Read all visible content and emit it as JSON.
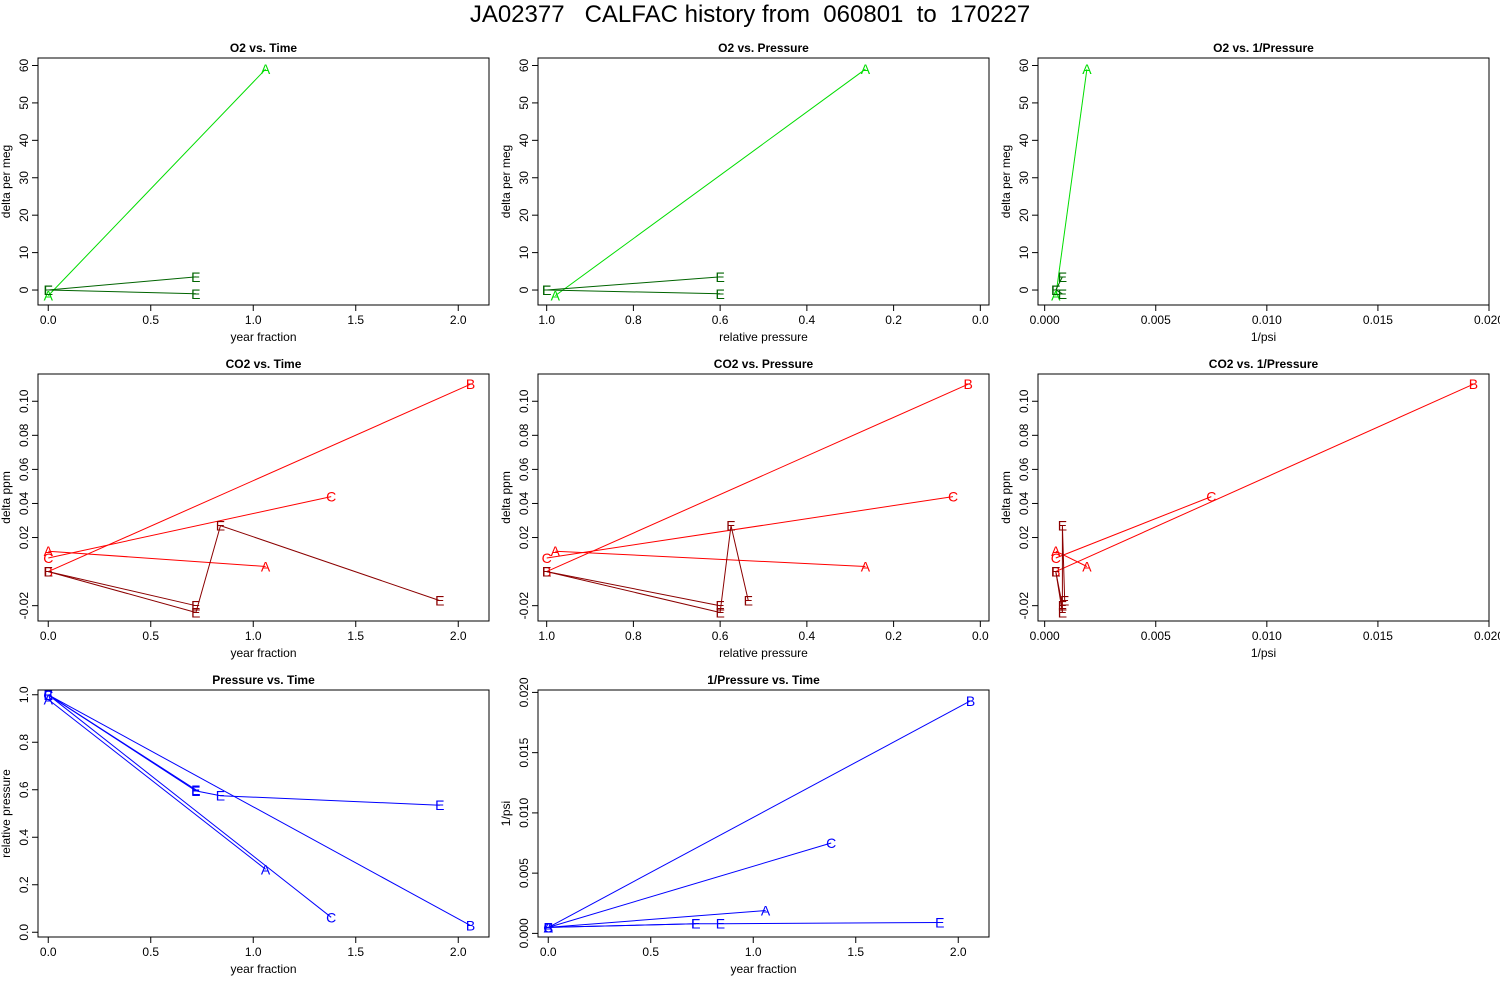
{
  "page": {
    "title": "JA02377   CALFAC history from  060801  to  170227"
  },
  "colors": {
    "o2_light": "#00dd00",
    "o2_dark": "#006400",
    "co2_light": "#ff0000",
    "co2_dark": "#8b0000",
    "pressure": "#0000ff"
  },
  "chart_data": [
    {
      "id": "o2-time",
      "type": "line",
      "title": "O2 vs. Time",
      "xlabel": "year fraction",
      "ylabel": "delta per meg",
      "xlim": [
        -0.05,
        2.15
      ],
      "ylim": [
        -4,
        62
      ],
      "xticks": [
        0,
        0.5,
        1,
        1.5,
        2
      ],
      "xticklabels": [
        "0.0",
        "0.5",
        "1.0",
        "1.5",
        "2.0"
      ],
      "yticks": [
        0,
        10,
        20,
        30,
        40,
        50,
        60
      ],
      "yticklabels": [
        "0",
        "10",
        "20",
        "30",
        "40",
        "50",
        "60"
      ],
      "series": [
        {
          "name": "A",
          "color": "#00dd00",
          "points": [
            {
              "x": 0,
              "y": -1.5,
              "label": "A"
            },
            {
              "x": 1.06,
              "y": 59,
              "label": "A"
            }
          ]
        },
        {
          "name": "E",
          "color": "#006400",
          "points": [
            {
              "x": 0,
              "y": 0,
              "label": "E"
            },
            {
              "x": 0.72,
              "y": -1,
              "label": "E"
            }
          ]
        },
        {
          "name": "E2",
          "color": "#006400",
          "points": [
            {
              "x": 0,
              "y": 0,
              "label": "E"
            },
            {
              "x": 0.72,
              "y": 3.5,
              "label": "E"
            }
          ]
        }
      ]
    },
    {
      "id": "o2-pressure",
      "type": "line",
      "title": "O2 vs. Pressure",
      "xlabel": "relative pressure",
      "ylabel": "delta per meg",
      "xlim": [
        1.02,
        -0.02
      ],
      "ylim": [
        -4,
        62
      ],
      "xticks": [
        1,
        0.8,
        0.6,
        0.4,
        0.2,
        0
      ],
      "xticklabels": [
        "1.0",
        "0.8",
        "0.6",
        "0.4",
        "0.2",
        "0.0"
      ],
      "yticks": [
        0,
        10,
        20,
        30,
        40,
        50,
        60
      ],
      "yticklabels": [
        "0",
        "10",
        "20",
        "30",
        "40",
        "50",
        "60"
      ],
      "series": [
        {
          "name": "A",
          "color": "#00dd00",
          "points": [
            {
              "x": 0.98,
              "y": -1.5,
              "label": "A"
            },
            {
              "x": 0.265,
              "y": 59,
              "label": "A"
            }
          ]
        },
        {
          "name": "E",
          "color": "#006400",
          "points": [
            {
              "x": 1.0,
              "y": 0,
              "label": "E"
            },
            {
              "x": 0.6,
              "y": -1,
              "label": "E"
            }
          ]
        },
        {
          "name": "E2",
          "color": "#006400",
          "points": [
            {
              "x": 1.0,
              "y": 0,
              "label": "E"
            },
            {
              "x": 0.6,
              "y": 3.5,
              "label": "E"
            }
          ]
        }
      ]
    },
    {
      "id": "o2-inv-pressure",
      "type": "line",
      "title": "O2 vs. 1/Pressure",
      "xlabel": "1/psi",
      "ylabel": "delta per meg",
      "xlim": [
        -0.0003,
        0.02
      ],
      "ylim": [
        -4,
        62
      ],
      "xticks": [
        0,
        0.005,
        0.01,
        0.015,
        0.02
      ],
      "xticklabels": [
        "0.000",
        "0.005",
        "0.010",
        "0.015",
        "0.020"
      ],
      "yticks": [
        0,
        10,
        20,
        30,
        40,
        50,
        60
      ],
      "yticklabels": [
        "0",
        "10",
        "20",
        "30",
        "40",
        "50",
        "60"
      ],
      "series": [
        {
          "name": "A",
          "color": "#00dd00",
          "points": [
            {
              "x": 0.0005,
              "y": -1.5,
              "label": "A"
            },
            {
              "x": 0.0019,
              "y": 59,
              "label": "A"
            }
          ]
        },
        {
          "name": "E",
          "color": "#006400",
          "points": [
            {
              "x": 0.0005,
              "y": 0,
              "label": "E"
            },
            {
              "x": 0.0008,
              "y": -1,
              "label": "E"
            }
          ]
        },
        {
          "name": "E2",
          "color": "#006400",
          "points": [
            {
              "x": 0.0005,
              "y": 0,
              "label": "E"
            },
            {
              "x": 0.0008,
              "y": 3.5,
              "label": "E"
            }
          ]
        }
      ]
    },
    {
      "id": "co2-time",
      "type": "line",
      "title": "CO2 vs. Time",
      "xlabel": "year fraction",
      "ylabel": "delta ppm",
      "xlim": [
        -0.05,
        2.15
      ],
      "ylim": [
        -0.029,
        0.116
      ],
      "xticks": [
        0,
        0.5,
        1,
        1.5,
        2
      ],
      "xticklabels": [
        "0.0",
        "0.5",
        "1.0",
        "1.5",
        "2.0"
      ],
      "yticks": [
        -0.02,
        0.02,
        0.04,
        0.06,
        0.08,
        0.1
      ],
      "yticklabels": [
        "-0.02",
        "0.02",
        "0.04",
        "0.06",
        "0.08",
        "0.10"
      ],
      "series": [
        {
          "name": "A",
          "color": "#ff0000",
          "points": [
            {
              "x": 0,
              "y": 0.012,
              "label": "A"
            },
            {
              "x": 1.06,
              "y": 0.003,
              "label": "A"
            }
          ]
        },
        {
          "name": "B",
          "color": "#ff0000",
          "points": [
            {
              "x": 0,
              "y": 0,
              "label": "B"
            },
            {
              "x": 2.06,
              "y": 0.11,
              "label": "B"
            }
          ]
        },
        {
          "name": "C",
          "color": "#ff0000",
          "points": [
            {
              "x": 0,
              "y": 0.008,
              "label": "C"
            },
            {
              "x": 1.38,
              "y": 0.044,
              "label": "C"
            }
          ]
        },
        {
          "name": "E1",
          "color": "#8b0000",
          "points": [
            {
              "x": 0,
              "y": 0,
              "label": "E"
            },
            {
              "x": 0.72,
              "y": -0.02,
              "label": "E"
            }
          ]
        },
        {
          "name": "E2",
          "color": "#8b0000",
          "points": [
            {
              "x": 0,
              "y": 0,
              "label": "E"
            },
            {
              "x": 0.72,
              "y": -0.024,
              "label": "E"
            },
            {
              "x": 0.84,
              "y": 0.027,
              "label": "E"
            },
            {
              "x": 1.91,
              "y": -0.017,
              "label": "E"
            }
          ]
        }
      ]
    },
    {
      "id": "co2-pressure",
      "type": "line",
      "title": "CO2 vs. Pressure",
      "xlabel": "relative pressure",
      "ylabel": "delta ppm",
      "xlim": [
        1.02,
        -0.02
      ],
      "ylim": [
        -0.029,
        0.116
      ],
      "xticks": [
        1,
        0.8,
        0.6,
        0.4,
        0.2,
        0
      ],
      "xticklabels": [
        "1.0",
        "0.8",
        "0.6",
        "0.4",
        "0.2",
        "0.0"
      ],
      "yticks": [
        -0.02,
        0.02,
        0.04,
        0.06,
        0.08,
        0.1
      ],
      "yticklabels": [
        "-0.02",
        "0.02",
        "0.04",
        "0.06",
        "0.08",
        "0.10"
      ],
      "series": [
        {
          "name": "A",
          "color": "#ff0000",
          "points": [
            {
              "x": 0.98,
              "y": 0.012,
              "label": "A"
            },
            {
              "x": 0.265,
              "y": 0.003,
              "label": "A"
            }
          ]
        },
        {
          "name": "B",
          "color": "#ff0000",
          "points": [
            {
              "x": 1.0,
              "y": 0,
              "label": "B"
            },
            {
              "x": 0.028,
              "y": 0.11,
              "label": "B"
            }
          ]
        },
        {
          "name": "C",
          "color": "#ff0000",
          "points": [
            {
              "x": 1.0,
              "y": 0.008,
              "label": "C"
            },
            {
              "x": 0.063,
              "y": 0.044,
              "label": "C"
            }
          ]
        },
        {
          "name": "E1",
          "color": "#8b0000",
          "points": [
            {
              "x": 1.0,
              "y": 0,
              "label": "E"
            },
            {
              "x": 0.6,
              "y": -0.02,
              "label": "E"
            }
          ]
        },
        {
          "name": "E2",
          "color": "#8b0000",
          "points": [
            {
              "x": 1.0,
              "y": 0,
              "label": "E"
            },
            {
              "x": 0.6,
              "y": -0.024,
              "label": "E"
            },
            {
              "x": 0.575,
              "y": 0.027,
              "label": "E"
            },
            {
              "x": 0.535,
              "y": -0.017,
              "label": "E"
            }
          ]
        }
      ]
    },
    {
      "id": "co2-inv-pressure",
      "type": "line",
      "title": "CO2 vs. 1/Pressure",
      "xlabel": "1/psi",
      "ylabel": "delta ppm",
      "xlim": [
        -0.0003,
        0.02
      ],
      "ylim": [
        -0.029,
        0.116
      ],
      "xticks": [
        0,
        0.005,
        0.01,
        0.015,
        0.02
      ],
      "xticklabels": [
        "0.000",
        "0.005",
        "0.010",
        "0.015",
        "0.020"
      ],
      "yticks": [
        -0.02,
        0.02,
        0.04,
        0.06,
        0.08,
        0.1
      ],
      "yticklabels": [
        "-0.02",
        "0.02",
        "0.04",
        "0.06",
        "0.08",
        "0.10"
      ],
      "series": [
        {
          "name": "A",
          "color": "#ff0000",
          "points": [
            {
              "x": 0.0005,
              "y": 0.012,
              "label": "A"
            },
            {
              "x": 0.0019,
              "y": 0.003,
              "label": "A"
            }
          ]
        },
        {
          "name": "B",
          "color": "#ff0000",
          "points": [
            {
              "x": 0.0005,
              "y": 0,
              "label": "B"
            },
            {
              "x": 0.0193,
              "y": 0.11,
              "label": "B"
            }
          ]
        },
        {
          "name": "C",
          "color": "#ff0000",
          "points": [
            {
              "x": 0.0005,
              "y": 0.008,
              "label": "C"
            },
            {
              "x": 0.0075,
              "y": 0.044,
              "label": "C"
            }
          ]
        },
        {
          "name": "E1",
          "color": "#8b0000",
          "points": [
            {
              "x": 0.0005,
              "y": 0,
              "label": "E"
            },
            {
              "x": 0.0008,
              "y": -0.02,
              "label": "E"
            }
          ]
        },
        {
          "name": "E2",
          "color": "#8b0000",
          "points": [
            {
              "x": 0.0005,
              "y": 0,
              "label": "E"
            },
            {
              "x": 0.0008,
              "y": -0.024,
              "label": "E"
            },
            {
              "x": 0.0008,
              "y": 0.027,
              "label": "E"
            },
            {
              "x": 0.0009,
              "y": -0.017,
              "label": "E"
            }
          ]
        }
      ]
    },
    {
      "id": "pressure-time",
      "type": "line",
      "title": "Pressure vs. Time",
      "xlabel": "year fraction",
      "ylabel": "relative pressure",
      "xlim": [
        -0.05,
        2.15
      ],
      "ylim": [
        -0.02,
        1.02
      ],
      "xticks": [
        0,
        0.5,
        1,
        1.5,
        2
      ],
      "xticklabels": [
        "0.0",
        "0.5",
        "1.0",
        "1.5",
        "2.0"
      ],
      "yticks": [
        0,
        0.2,
        0.4,
        0.6,
        0.8,
        1
      ],
      "yticklabels": [
        "0.0",
        "0.2",
        "0.4",
        "0.6",
        "0.8",
        "1.0"
      ],
      "series": [
        {
          "name": "A",
          "color": "#0000ff",
          "points": [
            {
              "x": 0,
              "y": 0.98,
              "label": "A"
            },
            {
              "x": 1.06,
              "y": 0.265,
              "label": "A"
            }
          ]
        },
        {
          "name": "B",
          "color": "#0000ff",
          "points": [
            {
              "x": 0,
              "y": 1.0,
              "label": "B"
            },
            {
              "x": 2.06,
              "y": 0.028,
              "label": "B"
            }
          ]
        },
        {
          "name": "C",
          "color": "#0000ff",
          "points": [
            {
              "x": 0,
              "y": 1.0,
              "label": "C"
            },
            {
              "x": 1.38,
              "y": 0.063,
              "label": "C"
            }
          ]
        },
        {
          "name": "E1",
          "color": "#0000ff",
          "points": [
            {
              "x": 0,
              "y": 1.0,
              "label": "E"
            },
            {
              "x": 0.72,
              "y": 0.6,
              "label": "E"
            }
          ]
        },
        {
          "name": "E2",
          "color": "#0000ff",
          "points": [
            {
              "x": 0,
              "y": 1.0,
              "label": "E"
            },
            {
              "x": 0.72,
              "y": 0.595,
              "label": "E"
            },
            {
              "x": 0.84,
              "y": 0.575,
              "label": "E"
            },
            {
              "x": 1.91,
              "y": 0.535,
              "label": "E"
            }
          ]
        }
      ]
    },
    {
      "id": "inv-pressure-time",
      "type": "line",
      "title": "1/Pressure vs. Time",
      "xlabel": "year fraction",
      "ylabel": "1/psi",
      "xlim": [
        -0.05,
        2.15
      ],
      "ylim": [
        -0.0003,
        0.0202
      ],
      "xticks": [
        0,
        0.5,
        1,
        1.5,
        2
      ],
      "xticklabels": [
        "0.0",
        "0.5",
        "1.0",
        "1.5",
        "2.0"
      ],
      "yticks": [
        0,
        0.005,
        0.01,
        0.015,
        0.02
      ],
      "yticklabels": [
        "0.000",
        "0.005",
        "0.010",
        "0.015",
        "0.020"
      ],
      "series": [
        {
          "name": "A",
          "color": "#0000ff",
          "points": [
            {
              "x": 0,
              "y": 0.0005,
              "label": "A"
            },
            {
              "x": 1.06,
              "y": 0.0019,
              "label": "A"
            }
          ]
        },
        {
          "name": "B",
          "color": "#0000ff",
          "points": [
            {
              "x": 0,
              "y": 0.0005,
              "label": "B"
            },
            {
              "x": 2.06,
              "y": 0.0193,
              "label": "B"
            }
          ]
        },
        {
          "name": "C",
          "color": "#0000ff",
          "points": [
            {
              "x": 0,
              "y": 0.0005,
              "label": "C"
            },
            {
              "x": 1.38,
              "y": 0.0075,
              "label": "C"
            }
          ]
        },
        {
          "name": "E1",
          "color": "#0000ff",
          "points": [
            {
              "x": 0,
              "y": 0.0005,
              "label": "E"
            },
            {
              "x": 0.72,
              "y": 0.0008,
              "label": "E"
            }
          ]
        },
        {
          "name": "E2",
          "color": "#0000ff",
          "points": [
            {
              "x": 0,
              "y": 0.0005,
              "label": "E"
            },
            {
              "x": 0.72,
              "y": 0.0008,
              "label": "E"
            },
            {
              "x": 0.84,
              "y": 0.0008,
              "label": "E"
            },
            {
              "x": 1.91,
              "y": 0.0009,
              "label": "E"
            }
          ]
        }
      ]
    }
  ]
}
